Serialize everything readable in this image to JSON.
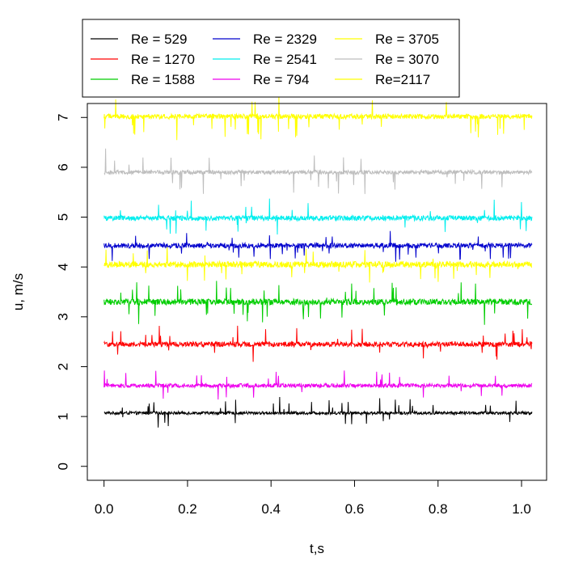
{
  "chart_data": {
    "type": "line",
    "xlabel": "t,s",
    "ylabel": "u, m/s",
    "xlim": [
      -0.04,
      1.06
    ],
    "ylim": [
      -0.28,
      7.28
    ],
    "x_range": [
      0,
      1.025
    ],
    "x_ticks": [
      "0.0",
      "0.2",
      "0.4",
      "0.6",
      "0.8",
      "1.0"
    ],
    "x_tick_values": [
      0,
      0.2,
      0.4,
      0.6,
      0.8,
      1.0
    ],
    "y_ticks": [
      "0",
      "1",
      "2",
      "3",
      "4",
      "5",
      "6",
      "7"
    ],
    "y_tick_values": [
      0,
      1,
      2,
      3,
      4,
      5,
      6,
      7
    ],
    "grid": false,
    "legend_position": "top",
    "series": [
      {
        "name": "Re = 529",
        "color": "#000000",
        "mean": 1.07,
        "noise": 0.03,
        "spike": 0.3,
        "spike_dir": 1
      },
      {
        "name": "Re = 1270",
        "color": "#ff0000",
        "mean": 2.45,
        "noise": 0.05,
        "spike": 0.35,
        "spike_dir": 0
      },
      {
        "name": "Re = 1588",
        "color": "#00cd00",
        "mean": 3.3,
        "noise": 0.06,
        "spike": 0.45,
        "spike_dir": 0
      },
      {
        "name": "Re = 2329",
        "color": "#0000cd",
        "mean": 4.43,
        "noise": 0.05,
        "spike": 0.3,
        "spike_dir": -1
      },
      {
        "name": "Re = 2541",
        "color": "#00eeee",
        "mean": 4.98,
        "noise": 0.05,
        "spike": 0.35,
        "spike_dir": 0
      },
      {
        "name": "Re = 794",
        "color": "#ee00ee",
        "mean": 1.62,
        "noise": 0.04,
        "spike": 0.3,
        "spike_dir": 1
      },
      {
        "name": "Re = 3705",
        "color": "#ffff00",
        "mean": 7.02,
        "noise": 0.05,
        "spike": 0.45,
        "spike_dir": -1
      },
      {
        "name": "Re = 3070",
        "color": "#bebebe",
        "mean": 5.9,
        "noise": 0.04,
        "spike": 0.45,
        "spike_dir": -1
      },
      {
        "name": "Re=2117",
        "color": "#ffff00",
        "mean": 4.05,
        "noise": 0.06,
        "spike": 0.35,
        "spike_dir": -1
      }
    ]
  }
}
